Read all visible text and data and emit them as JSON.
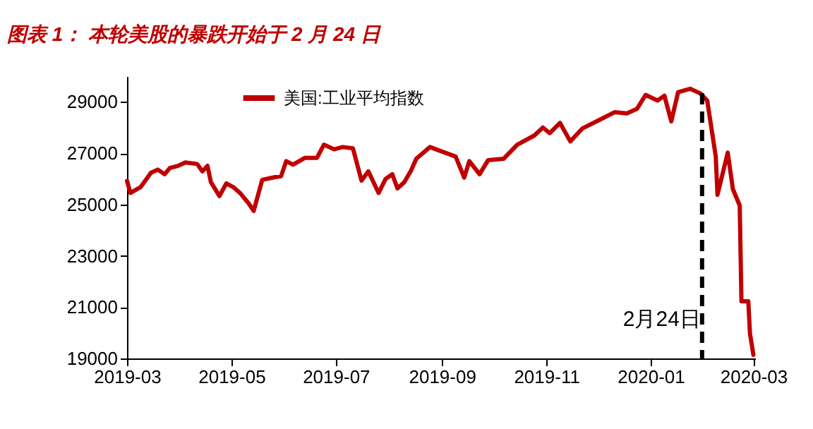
{
  "chart_data": {
    "type": "line",
    "title": "图表 1： 本轮美股的暴跌开始于 2 月 24 日",
    "x": [
      "2019-03-01",
      "2019-03-03",
      "2019-03-09",
      "2019-03-15",
      "2019-03-19",
      "2019-03-23",
      "2019-03-26",
      "2019-03-31",
      "2019-04-04",
      "2019-04-11",
      "2019-04-14",
      "2019-04-17",
      "2019-04-19",
      "2019-04-24",
      "2019-04-28",
      "2019-05-02",
      "2019-05-06",
      "2019-05-11",
      "2019-05-14",
      "2019-05-19",
      "2019-05-26",
      "2019-05-30",
      "2019-06-02",
      "2019-06-06",
      "2019-06-13",
      "2019-06-20",
      "2019-06-24",
      "2019-06-30",
      "2019-07-05",
      "2019-07-11",
      "2019-07-16",
      "2019-07-20",
      "2019-07-26",
      "2019-07-30",
      "2019-08-03",
      "2019-08-06",
      "2019-08-10",
      "2019-08-14",
      "2019-08-17",
      "2019-08-25",
      "2019-08-31",
      "2019-09-09",
      "2019-09-14",
      "2019-09-17",
      "2019-09-23",
      "2019-09-28",
      "2019-10-07",
      "2019-10-15",
      "2019-10-25",
      "2019-10-30",
      "2019-11-03",
      "2019-11-09",
      "2019-11-15",
      "2019-11-22",
      "2019-12-03",
      "2019-12-11",
      "2019-12-18",
      "2019-12-24",
      "2019-12-29",
      "2020-01-05",
      "2020-01-09",
      "2020-01-13",
      "2020-01-17",
      "2020-01-24",
      "2020-01-30",
      "2020-02-03",
      "2020-02-08",
      "2020-02-09",
      "2020-02-15",
      "2020-02-18",
      "2020-02-22",
      "2020-02-23",
      "2020-02-27",
      "2020-02-28",
      "2020-03-01"
    ],
    "series": [
      {
        "name": "美国:工业平均指数",
        "color": "#c00000",
        "values": [
          25920,
          25450,
          25680,
          26240,
          26360,
          26180,
          26420,
          26510,
          26640,
          26580,
          26290,
          26510,
          25870,
          25330,
          25820,
          25680,
          25450,
          25050,
          24750,
          25960,
          26060,
          26100,
          26690,
          26550,
          26820,
          26820,
          27330,
          27150,
          27240,
          27190,
          25930,
          26290,
          25450,
          25990,
          26180,
          25630,
          25870,
          26330,
          26780,
          27240,
          27090,
          26870,
          26050,
          26690,
          26180,
          26730,
          26780,
          27330,
          27690,
          28000,
          27780,
          28180,
          27460,
          27960,
          28330,
          28600,
          28550,
          28730,
          29270,
          29050,
          29240,
          28240,
          29380,
          29510,
          29330,
          29050,
          26870,
          25380,
          27020,
          25600,
          24960,
          21230,
          21230,
          19960,
          19140
        ]
      }
    ],
    "xlim": [
      "2019-03-01",
      "2020-03-02"
    ],
    "xticks": [
      {
        "value": "2019-03-01",
        "label": "2019-03"
      },
      {
        "value": "2019-05-01",
        "label": "2019-05"
      },
      {
        "value": "2019-07-01",
        "label": "2019-07"
      },
      {
        "value": "2019-09-01",
        "label": "2019-09"
      },
      {
        "value": "2019-11-01",
        "label": "2019-11"
      },
      {
        "value": "2020-01-01",
        "label": "2020-01"
      },
      {
        "value": "2020-03-01",
        "label": "2020-03"
      }
    ],
    "ylim": [
      19000,
      30000
    ],
    "yticks": [
      19000,
      21000,
      23000,
      25000,
      27000,
      29000
    ],
    "ref_lines": [
      {
        "axis": "x",
        "value": "2020-01-31",
        "label": "2月24日",
        "color": "#000000",
        "line_style": "dashed"
      }
    ],
    "legend": "top",
    "grid": false
  }
}
